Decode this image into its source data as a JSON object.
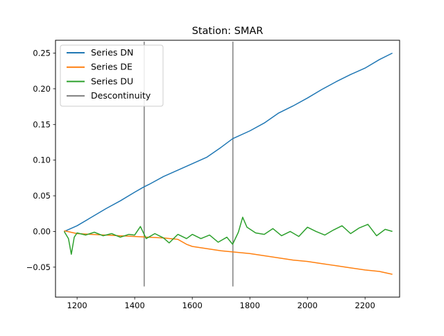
{
  "chart_data": {
    "type": "line",
    "title": "Station: SMAR",
    "xlabel": "",
    "ylabel": "",
    "xlim": [
      1125,
      2320
    ],
    "ylim": [
      -0.092,
      0.268
    ],
    "xticks": [
      1200,
      1400,
      1600,
      1800,
      2000,
      2200
    ],
    "xtick_labels": [
      "1200",
      "1400",
      "1600",
      "1800",
      "2000",
      "2200"
    ],
    "yticks": [
      -0.05,
      0.0,
      0.05,
      0.1,
      0.15,
      0.2,
      0.25
    ],
    "ytick_labels": [
      "−0.05",
      "0.00",
      "0.05",
      "0.10",
      "0.15",
      "0.20",
      "0.25"
    ],
    "grid": false,
    "legend_position": "top-left",
    "series": [
      {
        "name": "Series DN",
        "color": "#1f77b4",
        "x": [
          1155,
          1200,
          1250,
          1300,
          1350,
          1400,
          1430,
          1450,
          1500,
          1550,
          1600,
          1650,
          1700,
          1740,
          1800,
          1850,
          1900,
          1950,
          2000,
          2050,
          2100,
          2150,
          2200,
          2250,
          2295
        ],
        "y": [
          0.0,
          0.008,
          0.02,
          0.032,
          0.043,
          0.055,
          0.062,
          0.066,
          0.077,
          0.086,
          0.095,
          0.104,
          0.118,
          0.13,
          0.141,
          0.152,
          0.166,
          0.176,
          0.187,
          0.199,
          0.21,
          0.22,
          0.229,
          0.241,
          0.25
        ]
      },
      {
        "name": "Series DE",
        "color": "#ff7f0e",
        "x": [
          1155,
          1200,
          1250,
          1300,
          1350,
          1400,
          1450,
          1500,
          1550,
          1580,
          1600,
          1650,
          1700,
          1750,
          1800,
          1850,
          1900,
          1950,
          2000,
          2050,
          2100,
          2150,
          2200,
          2250,
          2295
        ],
        "y": [
          0.001,
          -0.003,
          -0.004,
          -0.005,
          -0.006,
          -0.007,
          -0.008,
          -0.009,
          -0.011,
          -0.018,
          -0.021,
          -0.024,
          -0.027,
          -0.029,
          -0.031,
          -0.034,
          -0.037,
          -0.04,
          -0.042,
          -0.045,
          -0.048,
          -0.051,
          -0.054,
          -0.056,
          -0.06
        ]
      },
      {
        "name": "Series DU",
        "color": "#2ca02c",
        "x": [
          1155,
          1170,
          1180,
          1190,
          1200,
          1230,
          1260,
          1290,
          1320,
          1350,
          1380,
          1400,
          1420,
          1440,
          1470,
          1500,
          1520,
          1550,
          1580,
          1600,
          1630,
          1660,
          1690,
          1720,
          1740,
          1760,
          1775,
          1790,
          1820,
          1850,
          1880,
          1910,
          1940,
          1970,
          2000,
          2030,
          2060,
          2090,
          2120,
          2150,
          2180,
          2210,
          2240,
          2270,
          2295
        ],
        "y": [
          0.0,
          -0.01,
          -0.032,
          -0.008,
          -0.002,
          -0.005,
          -0.001,
          -0.006,
          -0.003,
          -0.008,
          -0.004,
          -0.005,
          0.007,
          -0.01,
          -0.003,
          -0.009,
          -0.016,
          -0.004,
          -0.01,
          -0.004,
          -0.01,
          -0.005,
          -0.015,
          -0.008,
          -0.018,
          -0.001,
          0.02,
          0.006,
          -0.002,
          -0.004,
          0.004,
          -0.006,
          0.0,
          -0.007,
          0.006,
          0.0,
          -0.005,
          0.002,
          0.008,
          -0.003,
          0.005,
          0.01,
          -0.006,
          0.003,
          0.0
        ]
      }
    ],
    "discontinuities": {
      "name": "Descontinuity",
      "color": "#7f7f7f",
      "x": [
        1433,
        1741
      ],
      "y_range": [
        -0.077,
        0.266
      ]
    }
  }
}
